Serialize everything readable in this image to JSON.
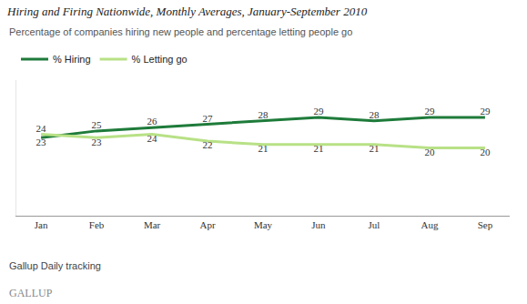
{
  "chart_data": {
    "type": "line",
    "title": "Hiring and Firing Nationwide, Monthly Averages, January-September 2010",
    "subtitle": "Percentage of companies hiring new people and percentage letting people go",
    "categories": [
      "Jan",
      "Feb",
      "Mar",
      "Apr",
      "May",
      "Jun",
      "Jul",
      "Aug",
      "Sep"
    ],
    "series": [
      {
        "name": "% Hiring",
        "color": "#1e7b3a",
        "values": [
          23,
          25,
          26,
          27,
          28,
          29,
          28,
          29,
          29
        ]
      },
      {
        "name": "% Letting go",
        "color": "#b8e186",
        "values": [
          24,
          23,
          24,
          22,
          21,
          21,
          21,
          20,
          20
        ]
      }
    ],
    "ylim": [
      0,
      40
    ],
    "yticks": [],
    "grid": false,
    "legend": "top-left",
    "data_labels": true,
    "tick_labels": "x",
    "note": "Gallup Daily tracking",
    "logo_text": "GALLUP"
  }
}
